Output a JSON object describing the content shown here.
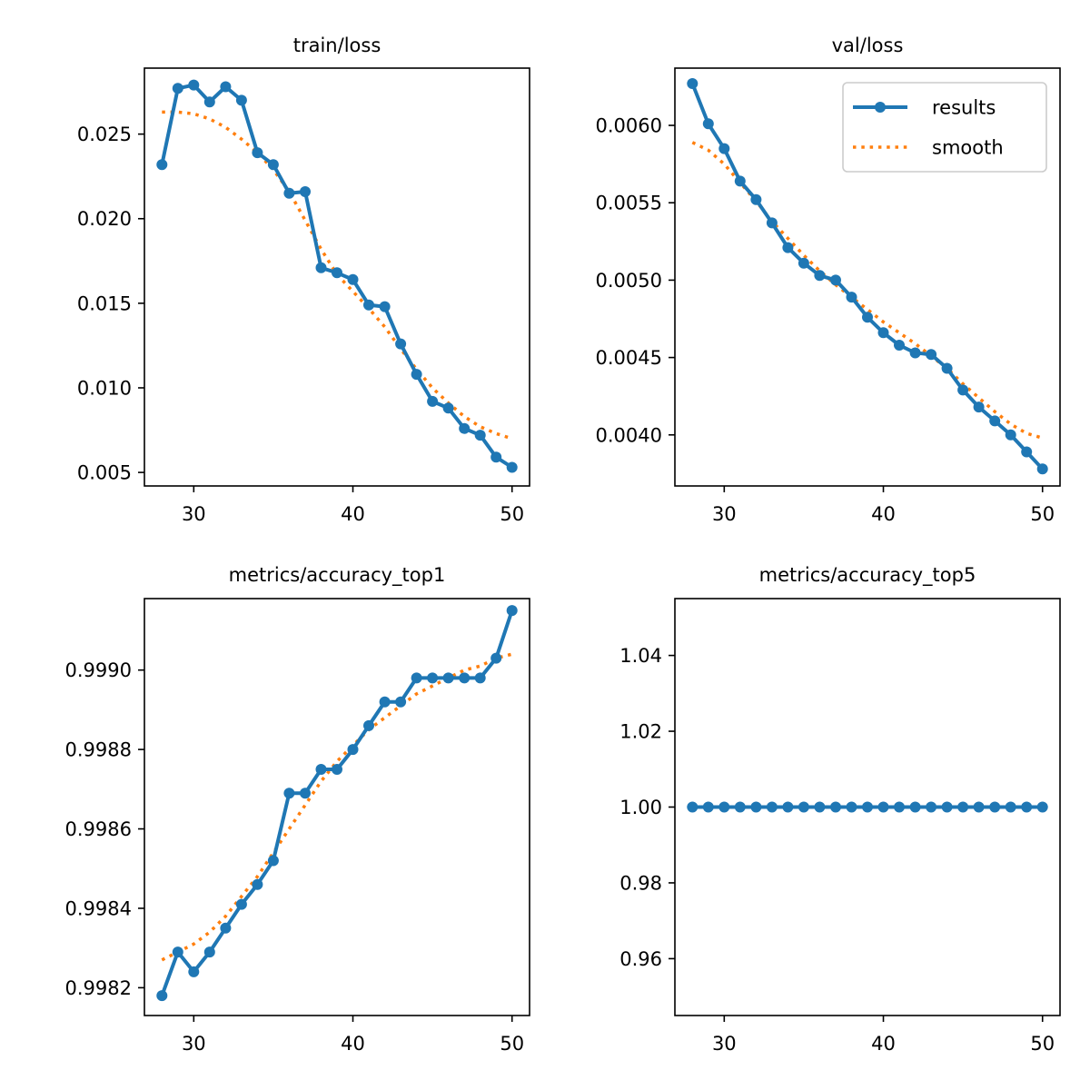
{
  "chart_data": [
    {
      "type": "line",
      "title": "train/loss",
      "xlabel": "",
      "ylabel": "",
      "xlim": [
        26.9,
        51.1
      ],
      "ylim": [
        0.0042,
        0.0289
      ],
      "x_ticks": [
        30,
        40,
        50
      ],
      "x_tick_labels": [
        "30",
        "40",
        "50"
      ],
      "y_ticks": [
        0.005,
        0.01,
        0.015,
        0.02,
        0.025
      ],
      "y_tick_labels": [
        "0.005",
        "0.010",
        "0.015",
        "0.020",
        "0.025"
      ],
      "legend": null,
      "x": [
        28,
        29,
        30,
        31,
        32,
        33,
        34,
        35,
        36,
        37,
        38,
        39,
        40,
        41,
        42,
        43,
        44,
        45,
        46,
        47,
        48,
        49,
        50
      ],
      "series": [
        {
          "name": "results",
          "style": "solid-markers",
          "color": "#1f77b4",
          "values": [
            0.0232,
            0.0277,
            0.0279,
            0.0269,
            0.0278,
            0.027,
            0.0239,
            0.0232,
            0.0215,
            0.0216,
            0.0171,
            0.0168,
            0.0164,
            0.0149,
            0.0148,
            0.0126,
            0.0108,
            0.0092,
            0.0088,
            0.0076,
            0.0072,
            0.0059,
            0.0053
          ]
        },
        {
          "name": "smooth",
          "style": "dotted",
          "color": "#ff7f0e",
          "values": [
            0.0263,
            0.0263,
            0.0262,
            0.0259,
            0.0254,
            0.0247,
            0.0239,
            0.0229,
            0.0216,
            0.0199,
            0.0182,
            0.0167,
            0.0157,
            0.0147,
            0.0136,
            0.0123,
            0.0111,
            0.01,
            0.0091,
            0.0083,
            0.0077,
            0.0073,
            0.007
          ]
        }
      ]
    },
    {
      "type": "line",
      "title": "val/loss",
      "xlabel": "",
      "ylabel": "",
      "xlim": [
        26.9,
        51.1
      ],
      "ylim": [
        0.00367,
        0.00637
      ],
      "x_ticks": [
        30,
        40,
        50
      ],
      "x_tick_labels": [
        "30",
        "40",
        "50"
      ],
      "y_ticks": [
        0.004,
        0.0045,
        0.005,
        0.0055,
        0.006
      ],
      "y_tick_labels": [
        "0.0040",
        "0.0045",
        "0.0050",
        "0.0055",
        "0.0060"
      ],
      "legend": {
        "location": "upper right",
        "entries": [
          "results",
          "smooth"
        ]
      },
      "x": [
        28,
        29,
        30,
        31,
        32,
        33,
        34,
        35,
        36,
        37,
        38,
        39,
        40,
        41,
        42,
        43,
        44,
        45,
        46,
        47,
        48,
        49,
        50
      ],
      "series": [
        {
          "name": "results",
          "style": "solid-markers",
          "color": "#1f77b4",
          "values": [
            0.00627,
            0.00601,
            0.00585,
            0.00564,
            0.00552,
            0.00537,
            0.00521,
            0.00511,
            0.00503,
            0.005,
            0.00489,
            0.00476,
            0.00466,
            0.00458,
            0.00453,
            0.00452,
            0.00443,
            0.00429,
            0.00418,
            0.00409,
            0.004,
            0.00389,
            0.00378
          ]
        },
        {
          "name": "smooth",
          "style": "dotted",
          "color": "#ff7f0e",
          "values": [
            0.00589,
            0.00584,
            0.00575,
            0.00563,
            0.00551,
            0.00538,
            0.00527,
            0.00516,
            0.00506,
            0.00497,
            0.00489,
            0.00481,
            0.00473,
            0.00466,
            0.00459,
            0.00451,
            0.00443,
            0.00433,
            0.00424,
            0.00415,
            0.00407,
            0.00401,
            0.00398
          ]
        }
      ]
    },
    {
      "type": "line",
      "title": "metrics/accuracy_top1",
      "xlabel": "",
      "ylabel": "",
      "xlim": [
        26.9,
        51.1
      ],
      "ylim": [
        0.99813,
        0.99918
      ],
      "x_ticks": [
        30,
        40,
        50
      ],
      "x_tick_labels": [
        "30",
        "40",
        "50"
      ],
      "y_ticks": [
        0.9982,
        0.9984,
        0.9986,
        0.9988,
        0.999
      ],
      "y_tick_labels": [
        "0.9982",
        "0.9984",
        "0.9986",
        "0.9988",
        "0.9990"
      ],
      "legend": null,
      "x": [
        28,
        29,
        30,
        31,
        32,
        33,
        34,
        35,
        36,
        37,
        38,
        39,
        40,
        41,
        42,
        43,
        44,
        45,
        46,
        47,
        48,
        49,
        50
      ],
      "series": [
        {
          "name": "results",
          "style": "solid-markers",
          "color": "#1f77b4",
          "values": [
            0.99818,
            0.99829,
            0.99824,
            0.99829,
            0.99835,
            0.99841,
            0.99846,
            0.99852,
            0.99869,
            0.99869,
            0.99875,
            0.99875,
            0.9988,
            0.99886,
            0.99892,
            0.99892,
            0.99898,
            0.99898,
            0.99898,
            0.99898,
            0.99898,
            0.99903,
            0.99915
          ]
        },
        {
          "name": "smooth",
          "style": "dotted",
          "color": "#ff7f0e",
          "values": [
            0.99827,
            0.99829,
            0.99831,
            0.99834,
            0.99838,
            0.99843,
            0.99848,
            0.99854,
            0.9986,
            0.99866,
            0.99872,
            0.99877,
            0.99881,
            0.99885,
            0.99888,
            0.99891,
            0.99894,
            0.99896,
            0.99898,
            0.999,
            0.99901,
            0.99903,
            0.99904
          ]
        }
      ]
    },
    {
      "type": "line",
      "title": "metrics/accuracy_top5",
      "xlabel": "",
      "ylabel": "",
      "xlim": [
        26.9,
        51.1
      ],
      "ylim": [
        0.945,
        1.055
      ],
      "x_ticks": [
        30,
        40,
        50
      ],
      "x_tick_labels": [
        "30",
        "40",
        "50"
      ],
      "y_ticks": [
        0.96,
        0.98,
        1.0,
        1.02,
        1.04
      ],
      "y_tick_labels": [
        "0.96",
        "0.98",
        "1.00",
        "1.02",
        "1.04"
      ],
      "legend": null,
      "x": [
        28,
        29,
        30,
        31,
        32,
        33,
        34,
        35,
        36,
        37,
        38,
        39,
        40,
        41,
        42,
        43,
        44,
        45,
        46,
        47,
        48,
        49,
        50
      ],
      "series": [
        {
          "name": "results",
          "style": "solid-markers",
          "color": "#1f77b4",
          "values": [
            1.0,
            1.0,
            1.0,
            1.0,
            1.0,
            1.0,
            1.0,
            1.0,
            1.0,
            1.0,
            1.0,
            1.0,
            1.0,
            1.0,
            1.0,
            1.0,
            1.0,
            1.0,
            1.0,
            1.0,
            1.0,
            1.0,
            1.0
          ]
        },
        {
          "name": "smooth",
          "style": "dotted",
          "color": "#ff7f0e",
          "values": [
            1.0,
            1.0,
            1.0,
            1.0,
            1.0,
            1.0,
            1.0,
            1.0,
            1.0,
            1.0,
            1.0,
            1.0,
            1.0,
            1.0,
            1.0,
            1.0,
            1.0,
            1.0,
            1.0,
            1.0,
            1.0,
            1.0,
            1.0
          ]
        }
      ]
    }
  ]
}
